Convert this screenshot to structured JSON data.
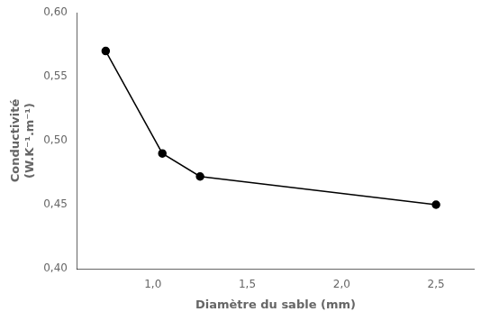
{
  "chart_data": {
    "type": "line",
    "xlabel": "Diamètre du sable (mm)",
    "ylabel": "Conductivité\n(W.K⁻¹.m⁻¹)",
    "x": [
      0.75,
      1.05,
      1.25,
      2.5
    ],
    "values": [
      0.57,
      0.49,
      0.472,
      0.45
    ],
    "color": "#000000",
    "marker": "circle",
    "xlim": [
      0.6,
      2.7
    ],
    "ylim": [
      0.4,
      0.6
    ],
    "xticks": [
      {
        "value": 1.0,
        "label": "1,0"
      },
      {
        "value": 1.5,
        "label": "1,5"
      },
      {
        "value": 2.0,
        "label": "2,0"
      },
      {
        "value": 2.5,
        "label": "2,5"
      }
    ],
    "yticks": [
      {
        "value": 0.4,
        "label": "0,40"
      },
      {
        "value": 0.45,
        "label": "0,45"
      },
      {
        "value": 0.5,
        "label": "0,50"
      },
      {
        "value": 0.55,
        "label": "0,55"
      },
      {
        "value": 0.6,
        "label": "0,60"
      }
    ],
    "grid": false
  }
}
